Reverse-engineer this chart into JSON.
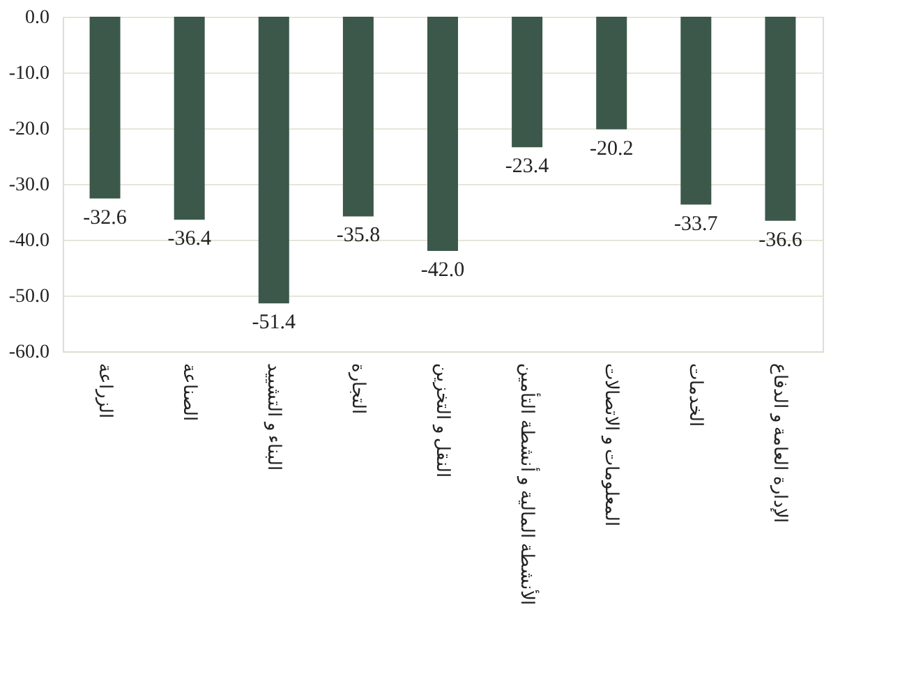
{
  "chart_data": {
    "type": "bar",
    "categories": [
      "الزراعة",
      "الصناعة",
      "البناء و التشييد",
      "التجارة",
      "النقل و التخزين",
      "الأنشطة المالية و أنشطة التأمين",
      "المعلومات و الاتصالات",
      "الخدمات",
      "الإدارة العامة و الدفاع"
    ],
    "values": [
      -32.6,
      -36.4,
      -51.4,
      -35.8,
      -42.0,
      -23.4,
      -20.2,
      -33.7,
      -36.6
    ],
    "value_labels": [
      "-32.6",
      "-36.4",
      "-51.4",
      "-35.8",
      "-42.0",
      "-23.4",
      "-20.2",
      "-33.7",
      "-36.6"
    ],
    "color": "#3b584b",
    "ylim": [
      -60,
      0
    ],
    "yticks": [
      {
        "value": 0,
        "label": "0.0"
      },
      {
        "value": -10,
        "label": "-10.0"
      },
      {
        "value": -20,
        "label": "-20.0"
      },
      {
        "value": -30,
        "label": "-30.0"
      },
      {
        "value": -40,
        "label": "-40.0"
      },
      {
        "value": -50,
        "label": "-50.0"
      },
      {
        "value": -60,
        "label": "-60.0"
      }
    ],
    "grid": "y"
  }
}
